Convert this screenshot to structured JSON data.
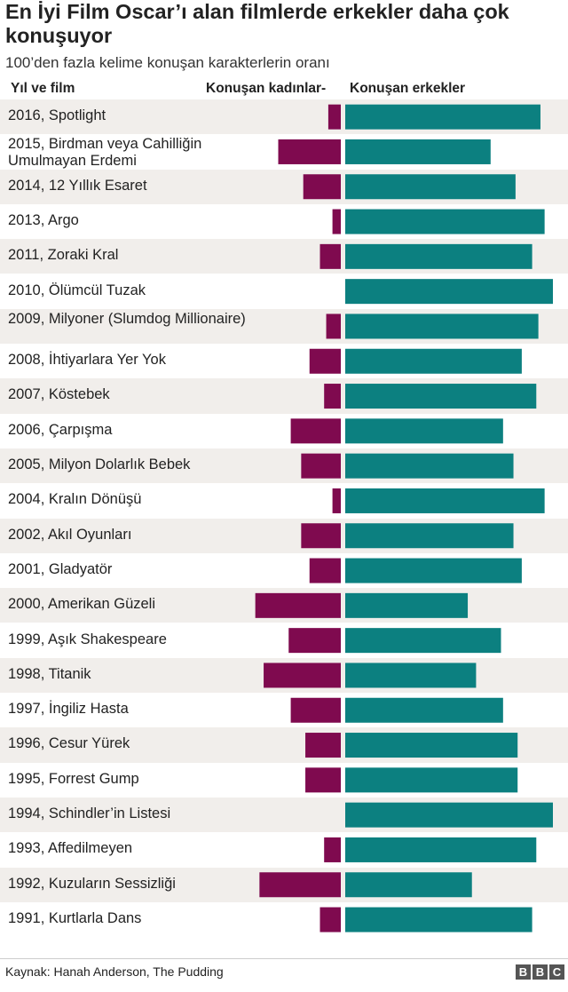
{
  "chart_data": {
    "type": "bar",
    "title": "En İyi Film Oscar’ı alan filmlerde erkekler daha çok konuşuyor",
    "subtitle": "100’den fazla kelime konuşan karakterlerin oranı",
    "category_header": "Yıl ve film",
    "categories": [
      "2016, Spotlight",
      "2015, Birdman veya Cahilliğin Umulmayan Erdemi",
      "2014, 12 Yıllık Esaret",
      "2013, Argo",
      "2011, Zoraki Kral",
      "2010, Ölümcül Tuzak",
      "2009, Milyoner (Slumdog Millionaire)",
      "2008, İhtiyarlara Yer Yok",
      "2007, Köstebek",
      "2006, Çarpışma",
      "2005, Milyon Dolarlık Bebek",
      "2004, Kralın Dönüşü",
      "2002, Akıl Oyunları",
      "2001, Gladyatör",
      "2000, Amerikan Güzeli",
      "1999, Aşık Shakespeare",
      "1998, Titanik",
      "1997, İngiliz Hasta",
      "1996, Cesur Yürek",
      "1995, Forrest Gump",
      "1994, Schindler’in Listesi",
      "1993, Affedilmeyen",
      "1992, Kuzuların Sessizliği",
      "1991, Kurtlarla Dans"
    ],
    "series": [
      {
        "name": "Konuşan kadınlar-",
        "color": "#7f0a4f",
        "values": [
          6,
          30,
          18,
          4,
          10,
          0,
          7,
          15,
          8,
          24,
          19,
          4,
          19,
          15,
          41,
          25,
          37,
          24,
          17,
          17,
          0,
          8,
          39,
          10
        ]
      },
      {
        "name": "Konuşan erkekler",
        "color": "#0c8080",
        "values": [
          94,
          70,
          82,
          96,
          90,
          100,
          93,
          85,
          92,
          76,
          81,
          96,
          81,
          85,
          59,
          75,
          63,
          76,
          83,
          83,
          100,
          92,
          61,
          90
        ]
      }
    ],
    "xlim": [
      0,
      100
    ],
    "unit": "%",
    "grid": false,
    "legend": "top"
  },
  "source": "Kaynak: Hanah Anderson, The Pudding",
  "logo": [
    "B",
    "B",
    "C"
  ],
  "colors": {
    "women": "#7f0a4f",
    "men": "#0c8080",
    "stripe": "#f1eeeb"
  }
}
